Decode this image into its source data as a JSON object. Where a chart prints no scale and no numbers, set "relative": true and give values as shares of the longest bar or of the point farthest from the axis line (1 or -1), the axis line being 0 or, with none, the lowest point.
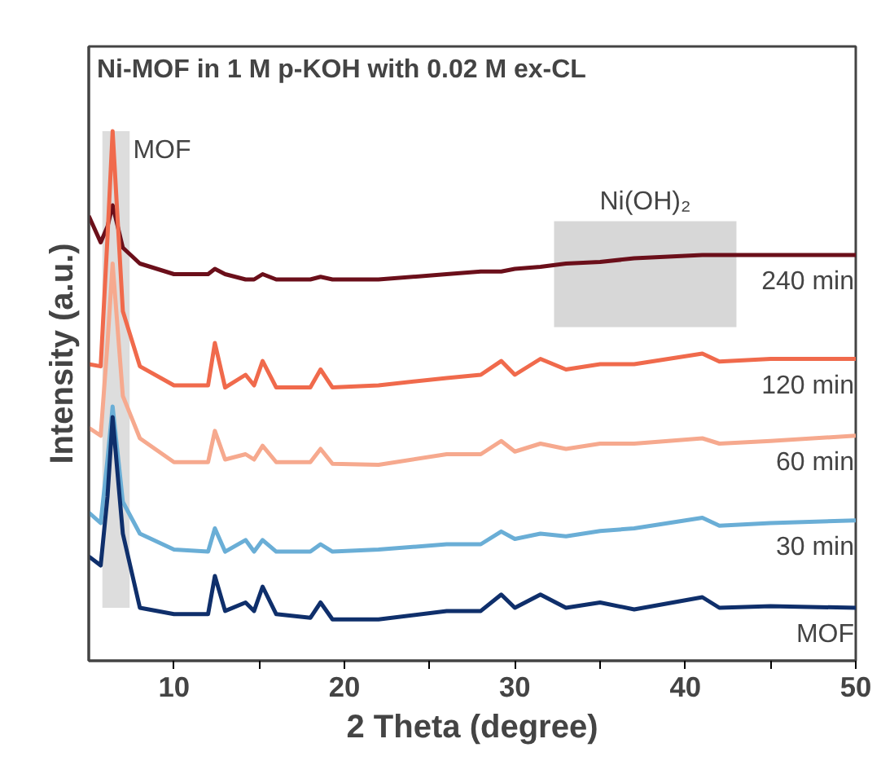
{
  "chart_data": {
    "type": "line",
    "title": "Ni-MOF in 1 M p-KOH with 0.02 M ex-CL",
    "xlabel": "2 Theta (degree)",
    "ylabel": "Intensity (a.u.)",
    "relative": true,
    "xlim": [
      5,
      50
    ],
    "xticks": [
      10,
      {
        "value": 15,
        "label": null
      },
      20,
      {
        "value": 25,
        "label": null
      },
      30,
      {
        "value": 35,
        "label": null
      },
      40,
      {
        "value": 45,
        "label": null
      },
      50
    ],
    "grid": false,
    "bands": [
      {
        "axis": "x",
        "from": 5.8,
        "to": 7.4,
        "label": "MOF",
        "color": "#d9d9d9"
      },
      {
        "axis": "x",
        "from": 32.3,
        "to": 43.0,
        "label": "Ni(OH)₂",
        "color": "#d3d3d3"
      }
    ],
    "x": [
      5,
      5.7,
      6.1,
      6.4,
      7,
      8,
      10,
      12,
      12.4,
      13,
      14.2,
      14.7,
      15.2,
      16,
      18,
      18.6,
      19.3,
      22,
      26,
      28,
      29.2,
      30,
      31.5,
      33,
      35,
      37,
      41,
      42,
      45,
      50
    ],
    "series": [
      {
        "name": "240 min",
        "color": "#6b0f1a",
        "values": [
          0.84,
          0.79,
          0.82,
          0.86,
          0.78,
          0.75,
          0.73,
          0.73,
          0.74,
          0.73,
          0.72,
          0.72,
          0.73,
          0.72,
          0.72,
          0.725,
          0.72,
          0.72,
          0.73,
          0.735,
          0.735,
          0.74,
          0.744,
          0.75,
          0.753,
          0.76,
          0.766,
          0.766,
          0.766,
          0.766
        ]
      },
      {
        "name": "120 min",
        "color": "#f06a4c",
        "values": [
          0.56,
          0.556,
          0.8,
          1.0,
          0.66,
          0.556,
          0.52,
          0.52,
          0.6,
          0.516,
          0.54,
          0.52,
          0.566,
          0.516,
          0.516,
          0.55,
          0.516,
          0.52,
          0.534,
          0.54,
          0.566,
          0.54,
          0.57,
          0.55,
          0.56,
          0.56,
          0.58,
          0.565,
          0.57,
          0.57
        ]
      },
      {
        "name": "60 min",
        "color": "#f6a98e",
        "values": [
          0.44,
          0.425,
          0.6,
          0.75,
          0.5,
          0.42,
          0.375,
          0.375,
          0.434,
          0.38,
          0.39,
          0.38,
          0.406,
          0.375,
          0.375,
          0.4,
          0.372,
          0.37,
          0.39,
          0.39,
          0.415,
          0.395,
          0.41,
          0.4,
          0.41,
          0.41,
          0.42,
          0.41,
          0.415,
          0.425
        ]
      },
      {
        "name": "30 min",
        "color": "#6aaed6",
        "values": [
          0.28,
          0.26,
          0.38,
          0.48,
          0.3,
          0.24,
          0.21,
          0.206,
          0.25,
          0.206,
          0.228,
          0.206,
          0.228,
          0.206,
          0.206,
          0.22,
          0.206,
          0.21,
          0.22,
          0.22,
          0.244,
          0.23,
          0.24,
          0.235,
          0.245,
          0.25,
          0.27,
          0.255,
          0.26,
          0.265
        ]
      },
      {
        "name": "MOF",
        "color": "#0f2f6b",
        "values": [
          0.197,
          0.18,
          0.31,
          0.46,
          0.24,
          0.1,
          0.088,
          0.088,
          0.16,
          0.094,
          0.11,
          0.094,
          0.14,
          0.088,
          0.081,
          0.11,
          0.078,
          0.078,
          0.094,
          0.094,
          0.125,
          0.1,
          0.125,
          0.1,
          0.11,
          0.097,
          0.12,
          0.1,
          0.103,
          0.1
        ]
      }
    ]
  }
}
